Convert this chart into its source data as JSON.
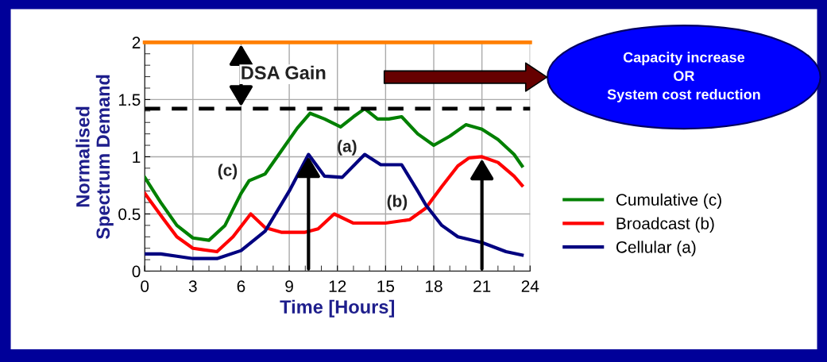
{
  "chart_data": {
    "type": "line",
    "xlabel": "Time [Hours]",
    "ylabel": "Normalised\nSpectrum Demand",
    "xlim": [
      0,
      24
    ],
    "ylim": [
      0,
      2
    ],
    "xticks": [
      0,
      3,
      6,
      9,
      12,
      15,
      18,
      21,
      24
    ],
    "yticks": [
      0,
      0.5,
      1,
      1.5,
      2
    ],
    "grid": true,
    "legend": "right",
    "marker": "none",
    "line_style": "solid",
    "series": [
      {
        "name": "Cumulative (c)",
        "color": "#008000",
        "x": [
          0,
          1,
          2,
          3,
          4,
          5,
          6,
          6.5,
          7.5,
          8.5,
          9.5,
          10.3,
          11.2,
          12.2,
          13,
          13.7,
          14.5,
          15.2,
          16,
          17,
          18,
          19,
          20,
          21,
          22,
          23,
          23.5
        ],
        "values": [
          0.82,
          0.6,
          0.4,
          0.29,
          0.27,
          0.4,
          0.68,
          0.79,
          0.85,
          1.05,
          1.25,
          1.38,
          1.33,
          1.26,
          1.35,
          1.42,
          1.33,
          1.33,
          1.35,
          1.2,
          1.1,
          1.18,
          1.28,
          1.24,
          1.15,
          1.02,
          0.92
        ]
      },
      {
        "name": "Broadcast (b)",
        "color": "#ff0000",
        "x": [
          0,
          1.2,
          2,
          3,
          4.5,
          5.5,
          6.6,
          7.5,
          8.5,
          10,
          10.8,
          11.8,
          13,
          14,
          15,
          16.5,
          17.5,
          18.5,
          19.5,
          20.2,
          21,
          22,
          23,
          23.5
        ],
        "values": [
          0.68,
          0.45,
          0.3,
          0.2,
          0.17,
          0.3,
          0.5,
          0.38,
          0.34,
          0.34,
          0.37,
          0.5,
          0.42,
          0.42,
          0.42,
          0.45,
          0.55,
          0.74,
          0.92,
          0.99,
          1.0,
          0.95,
          0.83,
          0.75
        ]
      },
      {
        "name": "Cellular (a)",
        "color": "#000080",
        "x": [
          0,
          1,
          2,
          3,
          4.5,
          6,
          7.5,
          9,
          10.2,
          11.2,
          12.3,
          13.7,
          14.7,
          16,
          17,
          17.5,
          18.5,
          19.5,
          21,
          22.5,
          23.5
        ],
        "values": [
          0.15,
          0.15,
          0.13,
          0.11,
          0.11,
          0.18,
          0.35,
          0.7,
          1.02,
          0.83,
          0.82,
          1.02,
          0.93,
          0.93,
          0.7,
          0.58,
          0.4,
          0.3,
          0.25,
          0.17,
          0.14
        ]
      }
    ],
    "ref_lines": [
      {
        "axis": "y",
        "value": 2,
        "color": "#ff7f00",
        "line_style": "solid"
      },
      {
        "axis": "y",
        "value": 1.42,
        "color": "#000000",
        "line_style": "dashed"
      }
    ],
    "annotations": [
      "(c)",
      "(a)",
      "(b)",
      "DSA Gain",
      "Capacity increase\nOR\nSystem cost reduction"
    ]
  }
}
